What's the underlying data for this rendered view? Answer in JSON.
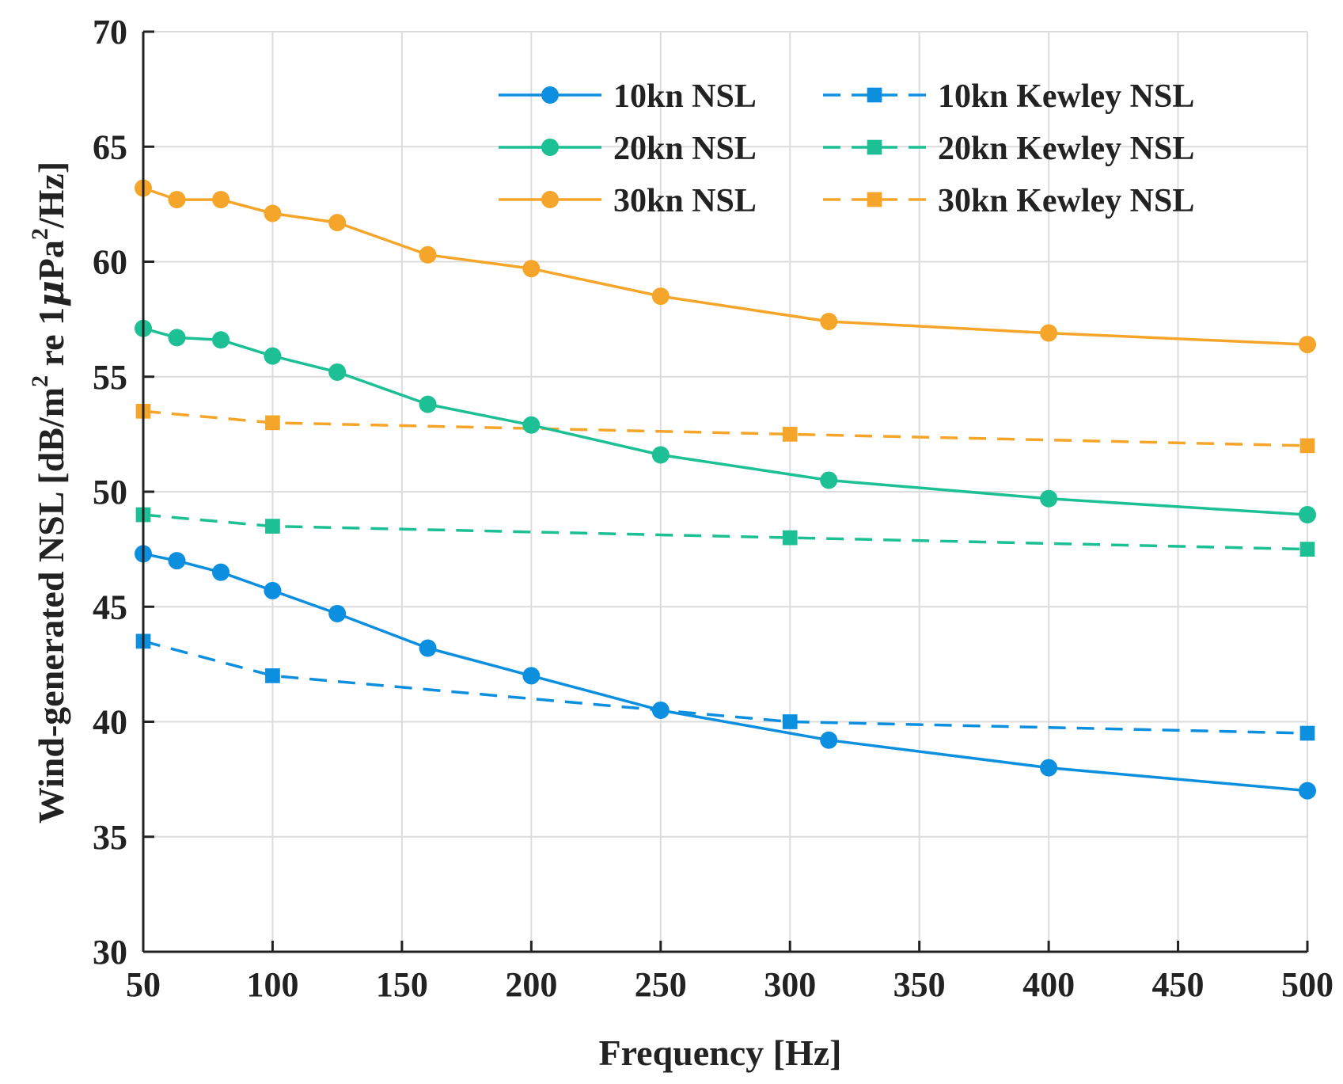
{
  "chart_data": {
    "type": "line",
    "xlabel": "Frequency [Hz]",
    "ylabel_parts": {
      "pre": "Wind-generated NSL [dB/m",
      "sup1": "2",
      "mid": " re 1",
      "mu": "μ",
      "pa": "Pa",
      "sup2": "2",
      "post": "/Hz]"
    },
    "xlim": [
      50,
      500
    ],
    "ylim": [
      30,
      70
    ],
    "xticks": [
      50,
      100,
      150,
      200,
      250,
      300,
      350,
      400,
      450,
      500
    ],
    "yticks": [
      30,
      35,
      40,
      45,
      50,
      55,
      60,
      65,
      70
    ],
    "grid": true,
    "legend_position": "top-right",
    "series": [
      {
        "name": "10kn NSL",
        "color": "#0d8fe0",
        "style": "solid",
        "marker": "circle",
        "x": [
          50,
          63,
          80,
          100,
          125,
          160,
          200,
          250,
          315,
          400,
          500
        ],
        "y": [
          47.3,
          47.0,
          46.5,
          45.7,
          44.7,
          43.2,
          42.0,
          40.5,
          39.2,
          38.0,
          37.0
        ]
      },
      {
        "name": "20kn NSL",
        "color": "#1dbf94",
        "style": "solid",
        "marker": "circle",
        "x": [
          50,
          63,
          80,
          100,
          125,
          160,
          200,
          250,
          315,
          400,
          500
        ],
        "y": [
          57.1,
          56.7,
          56.6,
          55.9,
          55.2,
          53.8,
          52.9,
          51.6,
          50.5,
          49.7,
          49.0
        ]
      },
      {
        "name": "30kn NSL",
        "color": "#f5a62a",
        "style": "solid",
        "marker": "circle",
        "x": [
          50,
          63,
          80,
          100,
          125,
          160,
          200,
          250,
          315,
          400,
          500
        ],
        "y": [
          63.2,
          62.7,
          62.7,
          62.1,
          61.7,
          60.3,
          59.7,
          58.5,
          57.4,
          56.9,
          56.4
        ]
      },
      {
        "name": "10kn Kewley NSL",
        "color": "#0d8fe0",
        "style": "dashed",
        "marker": "square",
        "x": [
          50,
          100,
          300,
          500
        ],
        "y": [
          43.5,
          42.0,
          40.0,
          39.5
        ]
      },
      {
        "name": "20kn Kewley NSL",
        "color": "#1dbf94",
        "style": "dashed",
        "marker": "square",
        "x": [
          50,
          100,
          300,
          500
        ],
        "y": [
          49.0,
          48.5,
          48.0,
          47.5
        ]
      },
      {
        "name": "30kn Kewley NSL",
        "color": "#f5a62a",
        "style": "dashed",
        "marker": "square",
        "x": [
          50,
          100,
          300,
          500
        ],
        "y": [
          53.5,
          53.0,
          52.5,
          52.0
        ]
      }
    ]
  }
}
